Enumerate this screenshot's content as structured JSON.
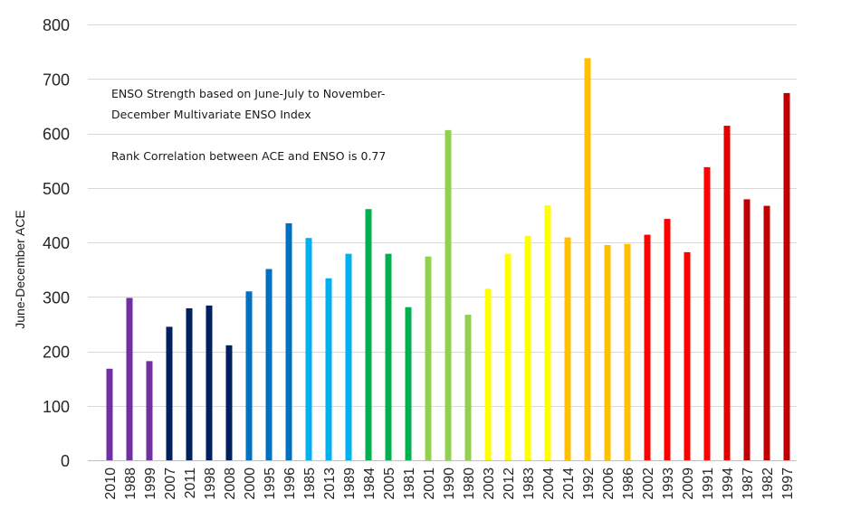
{
  "chart_data": {
    "type": "bar",
    "ylabel": "June-December ACE",
    "ylim": [
      0,
      800
    ],
    "yticks": [
      0,
      100,
      200,
      300,
      400,
      500,
      600,
      700,
      800
    ],
    "grid": true,
    "annotations": [
      "ENSO Strength based on June-July to November-December Multivariate ENSO Index",
      "Rank Correlation between ACE and ENSO is 0.77"
    ],
    "categories": [
      "2010",
      "1988",
      "1999",
      "2007",
      "2011",
      "1998",
      "2008",
      "2000",
      "1995",
      "1996",
      "1985",
      "2013",
      "1989",
      "1984",
      "2005",
      "1981",
      "2001",
      "1990",
      "1980",
      "2003",
      "2012",
      "1983",
      "2004",
      "2014",
      "1992",
      "2006",
      "1986",
      "2002",
      "1993",
      "2009",
      "1991",
      "1994",
      "1987",
      "1982",
      "1997"
    ],
    "values": [
      168,
      298,
      182,
      245,
      279,
      284,
      211,
      310,
      351,
      435,
      408,
      334,
      379,
      461,
      379,
      281,
      374,
      606,
      267,
      315,
      379,
      412,
      468,
      409,
      738,
      395,
      397,
      414,
      443,
      382,
      538,
      614,
      479,
      467,
      674
    ],
    "colors": [
      "#7030A0",
      "#7030A0",
      "#7030A0",
      "#002060",
      "#002060",
      "#002060",
      "#002060",
      "#0070C0",
      "#0070C0",
      "#0070C0",
      "#00B0F0",
      "#00B0F0",
      "#00B0F0",
      "#00B050",
      "#00B050",
      "#00B050",
      "#92D050",
      "#92D050",
      "#92D050",
      "#FFFF00",
      "#FFFF00",
      "#FFFF00",
      "#FFFF00",
      "#FFC000",
      "#FFC000",
      "#FFC000",
      "#FFC000",
      "#FF0000",
      "#FF0000",
      "#FF0000",
      "#FF0000",
      "#E00000",
      "#C00000",
      "#C00000",
      "#C00000"
    ]
  }
}
